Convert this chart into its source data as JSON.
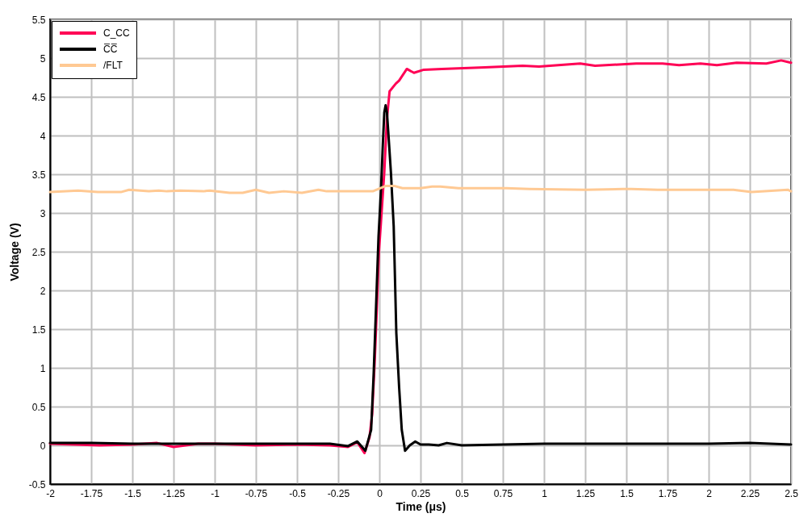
{
  "chart_data": {
    "type": "line",
    "xlabel": "Time (μs)",
    "ylabel": "Voltage (V)",
    "xlim": [
      -2,
      2.5
    ],
    "ylim": [
      -0.5,
      5.5
    ],
    "xticks": [
      -2,
      -1.75,
      -1.5,
      -1.25,
      -1,
      -0.75,
      -0.5,
      -0.25,
      0,
      0.25,
      0.5,
      0.75,
      1,
      1.25,
      1.5,
      1.75,
      2,
      2.25,
      2.5
    ],
    "yticks": [
      -0.5,
      0,
      0.5,
      1,
      1.5,
      2,
      2.5,
      3,
      3.5,
      4,
      4.5,
      5,
      5.5
    ],
    "grid": true,
    "legend": "top left",
    "line_style": "solid",
    "series": [
      {
        "name": "C_CC",
        "color": "#ff0055",
        "x": [
          -2,
          -1.85,
          -1.7,
          -1.5,
          -1.35,
          -1.25,
          -1.1,
          -1,
          -0.75,
          -0.5,
          -0.3,
          -0.19,
          -0.134,
          -0.09,
          -0.06,
          -0.044,
          -0.028,
          -0.015,
          -0.003,
          0.008,
          0.03,
          0.046,
          0.062,
          0.1,
          0.12,
          0.167,
          0.21,
          0.27,
          0.38,
          0.64,
          0.87,
          0.97,
          1.22,
          1.31,
          1.56,
          1.72,
          1.82,
          1.95,
          2.05,
          2.17,
          2.35,
          2.44,
          2.5
        ],
        "values": [
          0.02,
          0.01,
          0,
          0.01,
          0.03,
          -0.02,
          0.02,
          0.02,
          0,
          0.01,
          0,
          -0.02,
          0.04,
          -0.1,
          0.1,
          0.4,
          1.1,
          1.79,
          2.49,
          2.83,
          3.53,
          4.22,
          4.57,
          4.67,
          4.71,
          4.86,
          4.81,
          4.85,
          4.86,
          4.88,
          4.9,
          4.89,
          4.93,
          4.9,
          4.93,
          4.93,
          4.91,
          4.93,
          4.91,
          4.94,
          4.93,
          4.97,
          4.94
        ]
      },
      {
        "name": "C̅C̅",
        "color": "#000000",
        "x": [
          -2,
          -1.75,
          -1.5,
          -1.25,
          -1,
          -0.75,
          -0.5,
          -0.3,
          -0.19,
          -0.134,
          -0.085,
          -0.05,
          -0.035,
          -0.02,
          -0.005,
          0.01,
          0.021,
          0.03,
          0.038,
          0.046,
          0.054,
          0.07,
          0.087,
          0.103,
          0.12,
          0.136,
          0.156,
          0.185,
          0.218,
          0.25,
          0.3,
          0.36,
          0.41,
          0.5,
          0.75,
          1,
          1.25,
          1.5,
          1.75,
          2,
          2.25,
          2.5
        ],
        "values": [
          0.03,
          0.03,
          0.02,
          0.02,
          0.02,
          0.02,
          0.02,
          0.02,
          -0.01,
          0.05,
          -0.07,
          0.2,
          0.9,
          1.8,
          2.7,
          3.3,
          3.88,
          4.3,
          4.39,
          4.3,
          4.05,
          3.53,
          2.83,
          1.45,
          0.75,
          0.2,
          -0.07,
          0,
          0.05,
          0.01,
          0.01,
          0,
          0.03,
          0,
          0.01,
          0.02,
          0.02,
          0.02,
          0.02,
          0.02,
          0.03,
          0.01
        ]
      },
      {
        "name": "/FLT",
        "color": "#ffc993",
        "x": [
          -2,
          -1.83,
          -1.71,
          -1.57,
          -1.52,
          -1.4,
          -1.34,
          -1.29,
          -1.21,
          -1.07,
          -1.03,
          -0.91,
          -0.83,
          -0.75,
          -0.67,
          -0.58,
          -0.47,
          -0.37,
          -0.32,
          -0.13,
          -0.04,
          0.04,
          0.09,
          0.14,
          0.25,
          0.32,
          0.37,
          0.48,
          0.77,
          0.91,
          1.25,
          1.48,
          1.53,
          1.69,
          2.02,
          2.15,
          2.26,
          2.48,
          2.5
        ],
        "values": [
          3.27,
          3.29,
          3.27,
          3.27,
          3.3,
          3.28,
          3.29,
          3.28,
          3.29,
          3.28,
          3.29,
          3.26,
          3.26,
          3.3,
          3.26,
          3.28,
          3.26,
          3.3,
          3.28,
          3.28,
          3.28,
          3.35,
          3.35,
          3.32,
          3.32,
          3.34,
          3.34,
          3.32,
          3.32,
          3.31,
          3.3,
          3.31,
          3.31,
          3.3,
          3.3,
          3.3,
          3.27,
          3.3,
          3.28
        ]
      }
    ]
  }
}
